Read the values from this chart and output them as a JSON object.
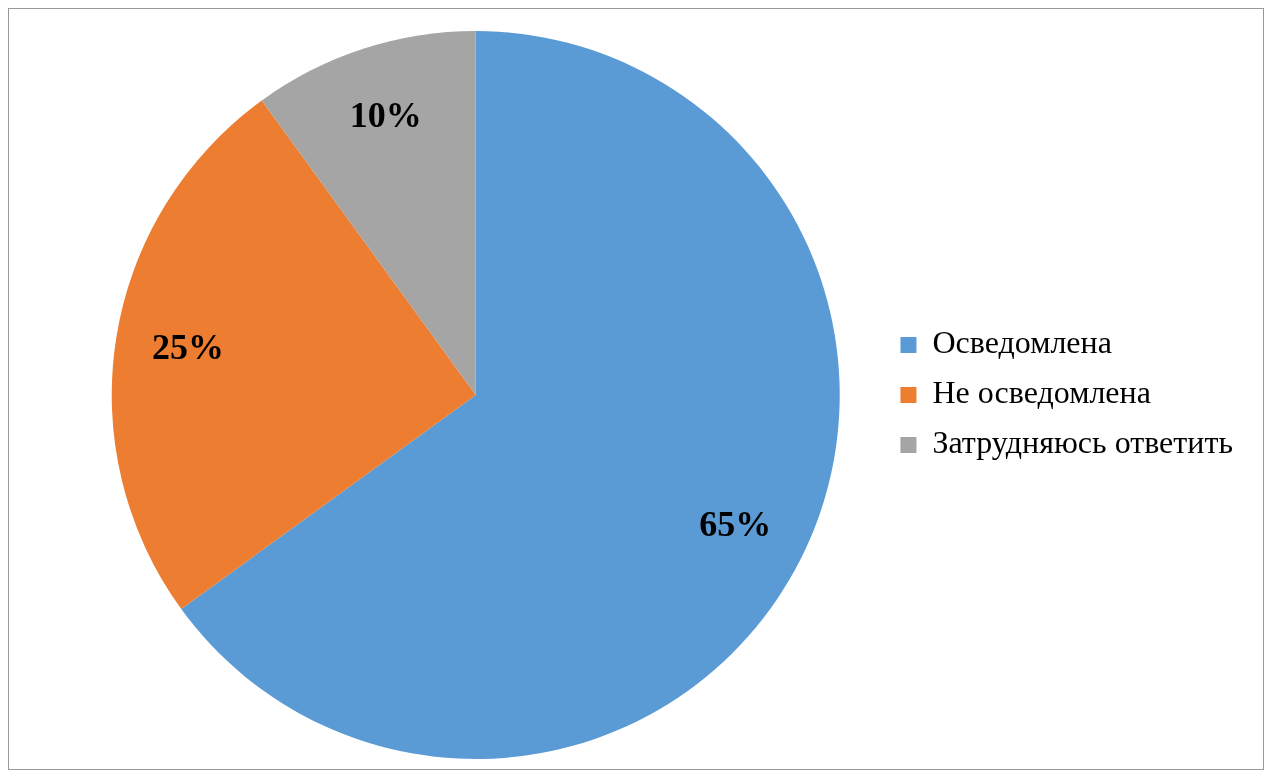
{
  "chart_data": {
    "type": "pie",
    "categories": [
      "Осведомлена",
      "Не осведомлена",
      "Затрудняюсь ответить"
    ],
    "values": [
      65,
      25,
      10
    ],
    "colors": [
      "#5b9bd5",
      "#ed7d31",
      "#a5a5a5"
    ],
    "value_labels": [
      "65%",
      "25%",
      "10%"
    ],
    "legend": "right"
  }
}
